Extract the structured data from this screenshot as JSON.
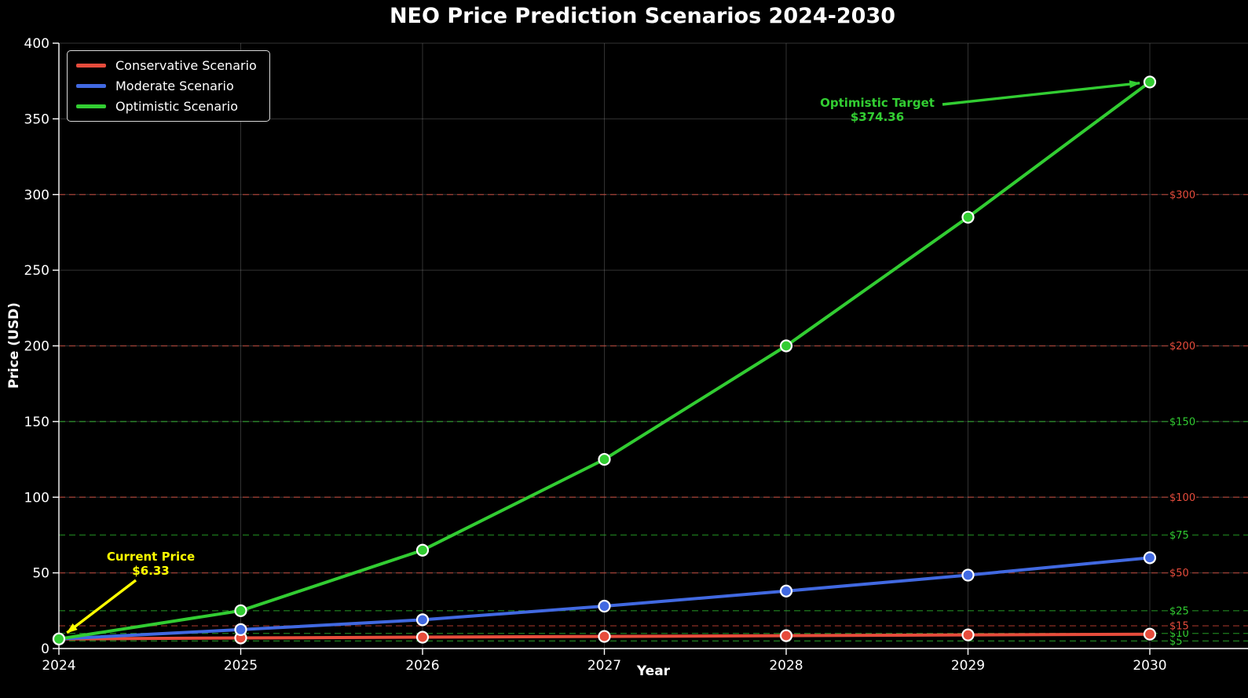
{
  "title": "NEO Price Prediction Scenarios 2024-2030",
  "chart_data": {
    "type": "line",
    "title": "NEO Price Prediction Scenarios 2024-2030",
    "xlabel": "Year",
    "ylabel": "Price (USD)",
    "x": [
      2024,
      2025,
      2026,
      2027,
      2028,
      2029,
      2030
    ],
    "xlim": [
      2024,
      2030.54
    ],
    "ylim": [
      0,
      400
    ],
    "yticks": [
      0,
      50,
      100,
      150,
      200,
      250,
      300,
      350,
      400
    ],
    "grid": true,
    "legend_position": "upper-left",
    "series": [
      {
        "name": "Conservative Scenario",
        "color": "#e74c3c",
        "values": [
          6.33,
          7.0,
          7.5,
          8.0,
          8.5,
          9.0,
          9.5
        ]
      },
      {
        "name": "Moderate Scenario",
        "color": "#4169e1",
        "values": [
          6.33,
          12.5,
          19,
          28,
          38,
          48.5,
          60
        ]
      },
      {
        "name": "Optimistic Scenario",
        "color": "#32cd32",
        "values": [
          6.33,
          25,
          65,
          125,
          200,
          285,
          374.36
        ]
      }
    ],
    "levels": [
      {
        "value": 5,
        "label": "$5",
        "kind": "support"
      },
      {
        "value": 10,
        "label": "$10",
        "kind": "support"
      },
      {
        "value": 15,
        "label": "$15",
        "kind": "resistance"
      },
      {
        "value": 25,
        "label": "$25",
        "kind": "support"
      },
      {
        "value": 50,
        "label": "$50",
        "kind": "resistance"
      },
      {
        "value": 75,
        "label": "$75",
        "kind": "support"
      },
      {
        "value": 100,
        "label": "$100",
        "kind": "resistance"
      },
      {
        "value": 150,
        "label": "$150",
        "kind": "support"
      },
      {
        "value": 200,
        "label": "$200",
        "kind": "resistance"
      },
      {
        "value": 300,
        "label": "$300",
        "kind": "resistance"
      }
    ],
    "level_colors": {
      "support": "#32cd32",
      "resistance": "#e74c3c"
    },
    "annotations": [
      {
        "id": "current-price",
        "lines": [
          "Current Price",
          "$6.33"
        ],
        "color": "#ffff00",
        "anchor": {
          "x": 2024,
          "y": 6.33
        }
      },
      {
        "id": "optimistic-target",
        "lines": [
          "Optimistic Target",
          "$374.36"
        ],
        "color": "#32cd32",
        "anchor": {
          "x": 2030,
          "y": 374.36
        }
      }
    ]
  }
}
